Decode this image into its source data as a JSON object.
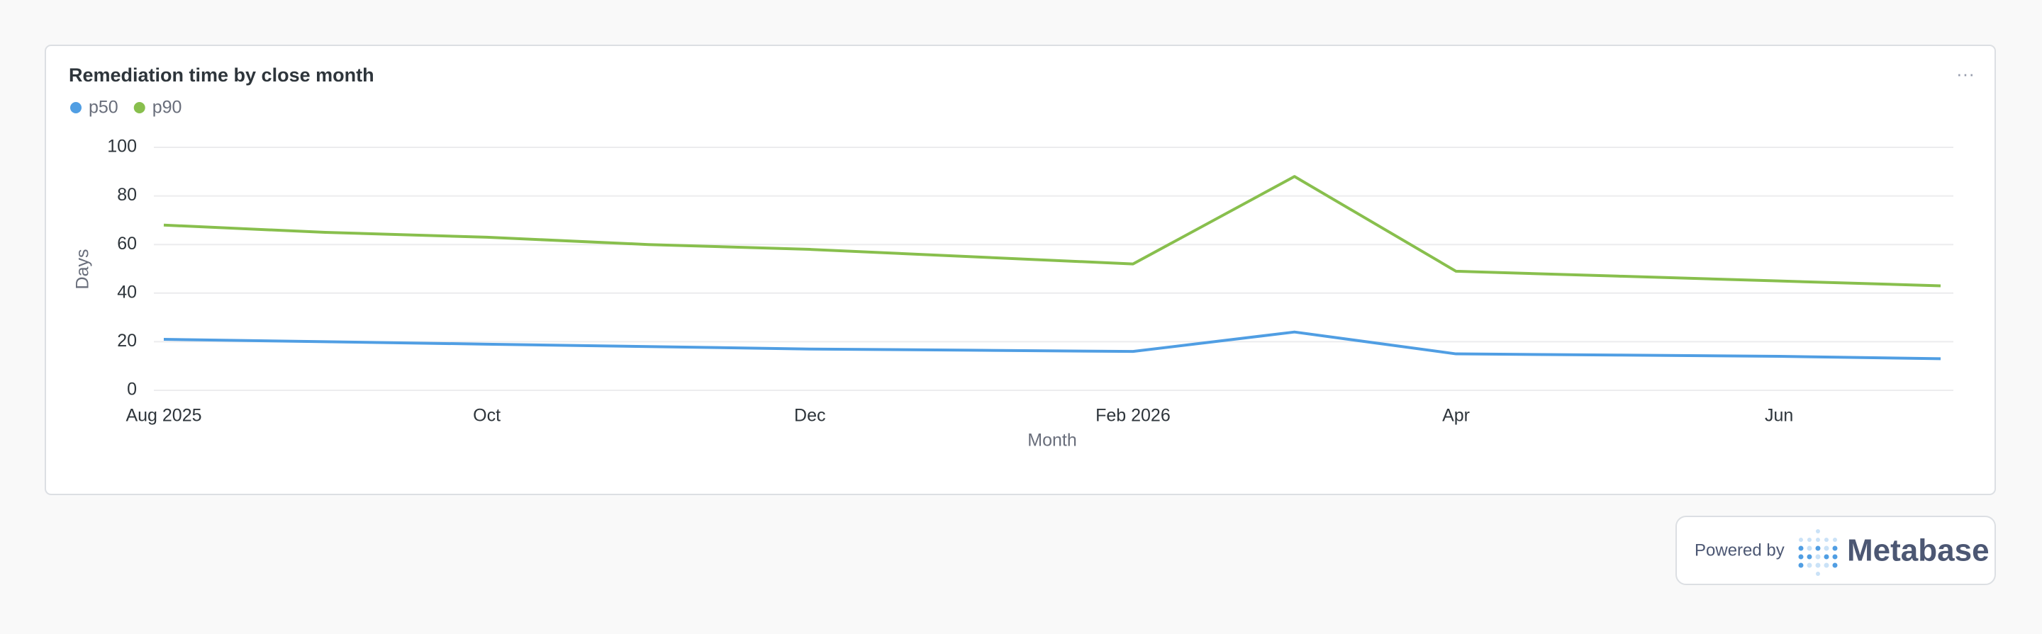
{
  "chart_data": {
    "type": "line",
    "title": "Remediation time by close month",
    "categories": [
      "Aug 2025",
      null,
      "Oct",
      null,
      "Dec",
      null,
      "Feb 2026",
      null,
      "Apr",
      null,
      "Jun",
      null
    ],
    "series": [
      {
        "name": "p50",
        "color": "#509ee3",
        "values": [
          21,
          20,
          19,
          18,
          17,
          16.5,
          16,
          24,
          15,
          14.5,
          14,
          13
        ]
      },
      {
        "name": "p90",
        "color": "#88bf4d",
        "values": [
          68,
          65,
          63,
          60,
          58,
          55,
          52,
          88,
          49,
          47,
          45,
          43
        ]
      }
    ],
    "ylim": [
      0,
      100
    ],
    "yticks": [
      0,
      20,
      40,
      60,
      80,
      100
    ],
    "grid": true,
    "xlabel": "Month",
    "ylabel": "Days"
  },
  "menu": "···",
  "footer": {
    "prefix": "Powered by",
    "brand": "Metabase"
  }
}
